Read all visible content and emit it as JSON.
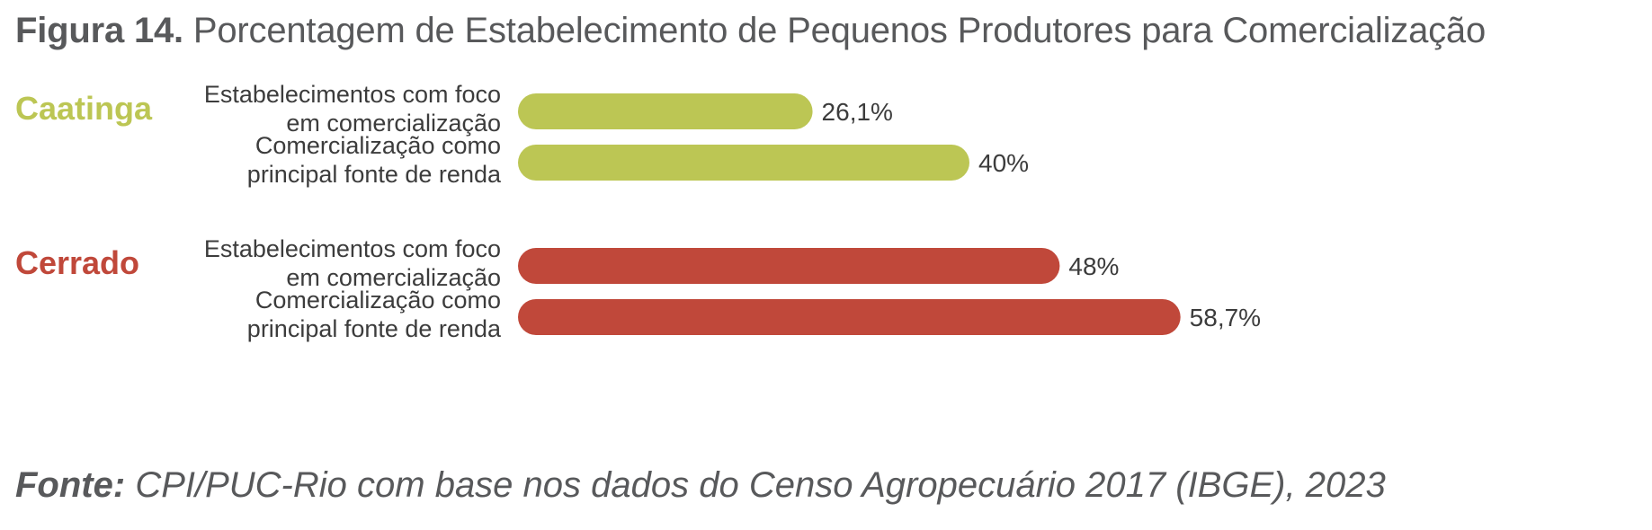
{
  "title": {
    "lead": "Figura 14.",
    "text": "Porcentagem de Estabelecimento de Pequenos Produtores para Comercialização"
  },
  "source": {
    "lead": "Fonte:",
    "text": "CPI/PUC-Rio com base nos dados do Censo Agropecuário 2017 (IBGE), 2023"
  },
  "chart_data": {
    "type": "bar",
    "orientation": "horizontal",
    "value_unit": "%",
    "xlim": [
      0,
      100
    ],
    "grid": false,
    "groups": [
      {
        "name": "Caatinga",
        "color": "#bcc654",
        "bars": [
          {
            "label": [
              "Estabelecimentos com foco",
              "em comercialização"
            ],
            "value": 26.1,
            "value_label": "26,1%"
          },
          {
            "label": [
              "Comercialização como",
              "principal fonte de renda"
            ],
            "value": 40,
            "value_label": "40%"
          }
        ]
      },
      {
        "name": "Cerrado",
        "color": "#c0483a",
        "bars": [
          {
            "label": [
              "Estabelecimentos com foco",
              "em comercialização"
            ],
            "value": 48,
            "value_label": "48%"
          },
          {
            "label": [
              "Comercialização como",
              "principal fonte de renda"
            ],
            "value": 58.7,
            "value_label": "58,7%"
          }
        ]
      }
    ]
  }
}
